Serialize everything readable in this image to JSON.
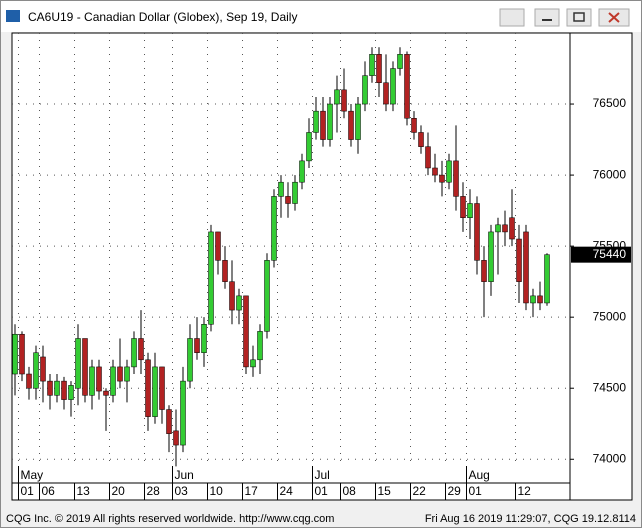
{
  "chart_data": {
    "type": "candlestick",
    "title": "CA6U19 - Canadian Dollar (Globex), Sep 19, Daily",
    "categories": [
      null,
      "01",
      null,
      null,
      "06",
      null,
      null,
      null,
      null,
      "13",
      null,
      null,
      null,
      null,
      "20",
      null,
      null,
      null,
      null,
      "28",
      null,
      null,
      null,
      "03",
      null,
      null,
      null,
      null,
      "10",
      null,
      null,
      null,
      null,
      "17",
      null,
      null,
      null,
      null,
      "24",
      null,
      null,
      null,
      null,
      "01",
      null,
      null,
      null,
      "08",
      null,
      null,
      null,
      null,
      "15",
      null,
      null,
      null,
      null,
      "22",
      null,
      null,
      null,
      null,
      "29",
      null,
      null,
      "01",
      null,
      null,
      null,
      null,
      null,
      null,
      "12",
      null,
      null,
      null,
      null
    ],
    "months": [
      null,
      "May",
      null,
      null,
      null,
      null,
      null,
      null,
      null,
      null,
      null,
      null,
      null,
      null,
      null,
      null,
      null,
      null,
      null,
      null,
      null,
      null,
      null,
      "Jun",
      null,
      null,
      null,
      null,
      null,
      null,
      null,
      null,
      null,
      null,
      null,
      null,
      null,
      null,
      null,
      null,
      null,
      null,
      null,
      "Jul",
      null,
      null,
      null,
      null,
      null,
      null,
      null,
      null,
      null,
      null,
      null,
      null,
      null,
      null,
      null,
      null,
      null,
      null,
      null,
      null,
      null,
      "Aug",
      null,
      null,
      null,
      null,
      null,
      null,
      null,
      null,
      null,
      null,
      null
    ],
    "open": [
      74600,
      74880,
      74600,
      74500,
      74720,
      74550,
      74450,
      74550,
      74420,
      74500,
      74850,
      74450,
      74650,
      74480,
      74450,
      74650,
      74550,
      74650,
      74850,
      74700,
      74300,
      74650,
      74350,
      74200,
      74100,
      74550,
      74850,
      74750,
      74950,
      75600,
      75400,
      75250,
      75050,
      75150,
      74650,
      74700,
      74900,
      75400,
      75850,
      75850,
      75800,
      75950,
      76100,
      76300,
      76450,
      76250,
      76500,
      76600,
      76450,
      76250,
      76500,
      76700,
      76850,
      76650,
      76500,
      76750,
      76850,
      76400,
      76300,
      76200,
      76050,
      76000,
      75950,
      76100,
      75850,
      75700,
      75800,
      75400,
      75250,
      75600,
      75650,
      75700,
      75550,
      75600,
      75100,
      75150,
      75100
    ],
    "high": [
      74950,
      74900,
      74650,
      74800,
      74800,
      74600,
      74600,
      74580,
      74550,
      74950,
      74850,
      74700,
      74700,
      74500,
      74700,
      74850,
      74700,
      74900,
      75050,
      74750,
      74750,
      74650,
      74380,
      74350,
      74650,
      74950,
      75000,
      75000,
      75650,
      75600,
      75500,
      75400,
      75200,
      75150,
      74800,
      74950,
      75450,
      75900,
      76000,
      75950,
      76000,
      76150,
      76400,
      76550,
      76550,
      76550,
      76700,
      76750,
      76500,
      76550,
      76800,
      76900,
      76900,
      76850,
      76800,
      76900,
      76870,
      76450,
      76350,
      76300,
      76150,
      76100,
      76150,
      76350,
      75950,
      75900,
      75850,
      75500,
      75650,
      75700,
      75750,
      75900,
      75650,
      75650,
      75200,
      75250,
      75450
    ],
    "low": [
      74450,
      74550,
      74420,
      74420,
      74400,
      74350,
      74400,
      74350,
      74300,
      74380,
      74400,
      74350,
      74420,
      74200,
      74400,
      74500,
      74400,
      74600,
      74600,
      74200,
      74250,
      74250,
      74050,
      73950,
      74050,
      74500,
      74700,
      74650,
      74900,
      75300,
      75200,
      74950,
      74950,
      74600,
      74580,
      74600,
      74850,
      75350,
      75700,
      75700,
      75750,
      75900,
      76050,
      76250,
      76200,
      76200,
      76300,
      76400,
      76200,
      76150,
      76450,
      76650,
      76550,
      76450,
      76450,
      76700,
      76350,
      76250,
      76150,
      76000,
      75950,
      75850,
      75900,
      75750,
      75600,
      75550,
      75300,
      75000,
      75150,
      75300,
      75500,
      75500,
      75100,
      75050,
      75000,
      75050,
      75080
    ],
    "close": [
      74880,
      74600,
      74500,
      74750,
      74550,
      74450,
      74550,
      74420,
      74520,
      74850,
      74450,
      74650,
      74480,
      74450,
      74650,
      74550,
      74650,
      74850,
      74700,
      74300,
      74650,
      74350,
      74180,
      74100,
      74550,
      74850,
      74750,
      74950,
      75600,
      75400,
      75250,
      75050,
      75150,
      74650,
      74700,
      74900,
      75400,
      75850,
      75950,
      75800,
      75950,
      76100,
      76300,
      76450,
      76250,
      76500,
      76600,
      76450,
      76250,
      76500,
      76700,
      76850,
      76650,
      76500,
      76750,
      76850,
      76400,
      76300,
      76200,
      76050,
      76000,
      75950,
      76100,
      75850,
      75700,
      75800,
      75400,
      75250,
      75600,
      75650,
      75600,
      75550,
      75250,
      75100,
      75150,
      75100,
      75440
    ],
    "up_color": "#33cc33",
    "down_color": "#b22222",
    "ylim": [
      73840,
      77000
    ],
    "yticks": [
      74000,
      74500,
      75000,
      75500,
      76000,
      76500
    ],
    "grid": true
  },
  "footer": {
    "left": "CQG Inc. © 2019 All rights reserved worldwide. http://www.cqg.com",
    "right": "Fri Aug 16 2019 11:29:07, CQG 19.12.8114"
  }
}
